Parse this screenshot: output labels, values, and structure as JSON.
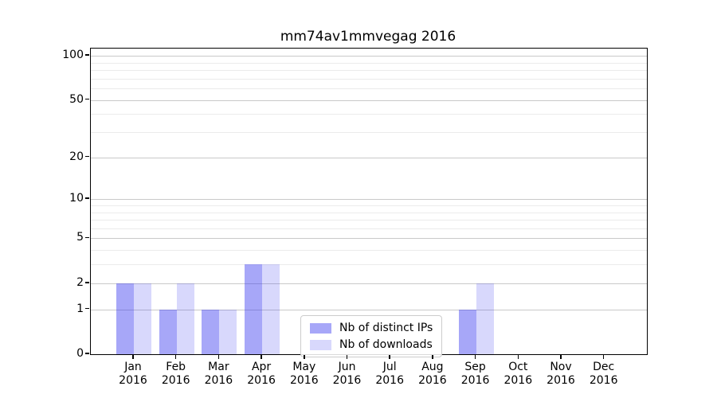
{
  "figure": {
    "title": "mm74av1mmvegag 2016"
  },
  "chart_data": {
    "type": "bar",
    "title": "mm74av1mmvegag 2016",
    "categories": [
      "Jan 2016",
      "Feb 2016",
      "Mar 2016",
      "Apr 2016",
      "May 2016",
      "Jun 2016",
      "Jul 2016",
      "Aug 2016",
      "Sep 2016",
      "Oct 2016",
      "Nov 2016",
      "Dec 2016"
    ],
    "x_tick_months": [
      "Jan",
      "Feb",
      "Mar",
      "Apr",
      "May",
      "Jun",
      "Jul",
      "Aug",
      "Sep",
      "Oct",
      "Nov",
      "Dec"
    ],
    "x_tick_year": "2016",
    "series": [
      {
        "name": "Nb of distinct IPs",
        "color": "rgba(60,60,240,0.45)",
        "values": [
          2,
          1,
          1,
          3,
          0,
          0,
          0,
          0,
          1,
          0,
          0,
          0
        ]
      },
      {
        "name": "Nb of downloads",
        "color": "rgba(60,60,240,0.20)",
        "values": [
          2,
          2,
          1,
          3,
          0,
          0,
          0,
          0,
          2,
          0,
          0,
          0
        ]
      }
    ],
    "xlabel": "",
    "ylabel": "",
    "y_scale": "log1p",
    "ylim": [
      0,
      112
    ],
    "y_major_ticks": [
      0,
      1,
      2,
      5,
      10,
      20,
      50,
      100
    ],
    "y_minor_ticks": [
      3,
      4,
      6,
      7,
      8,
      9,
      30,
      40,
      60,
      70,
      80,
      90
    ],
    "grid": true,
    "legend_position": "inside-bottom-center"
  },
  "colors": {
    "axis": "#000000",
    "major_grid": "#c9c9c9",
    "minor_grid": "#ebebeb",
    "distinct_ips_bar": "rgba(60,60,240,0.45)",
    "downloads_bar": "rgba(60,60,240,0.20)"
  }
}
